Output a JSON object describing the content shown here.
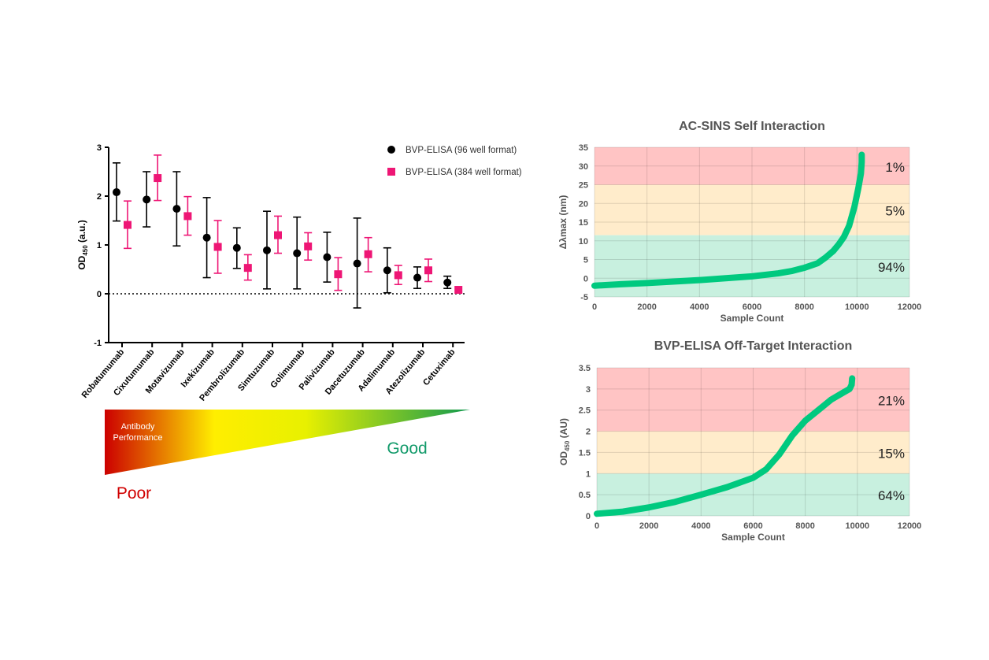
{
  "chart_data": [
    {
      "type": "scatter",
      "ylabel": "OD450 (a.u.)",
      "ylabel_main": "OD",
      "ylabel_sub": "450",
      "ylabel_unit": " (a.u.)",
      "ylim": [
        -1,
        3
      ],
      "yticks": [
        "-1",
        "0",
        "1",
        "2",
        "3"
      ],
      "reference_line": 0,
      "legend": "top-right",
      "categories": [
        "Robatumumab",
        "Cixutumumab",
        "Motavizumab",
        "Ixekizumab",
        "Pembrolizumab",
        "Simtuzumab",
        "Golimumab",
        "Palivizumab",
        "Dacetuzumab",
        "Adalimumab",
        "Atezolizumab",
        "Cetuximab"
      ],
      "series": [
        {
          "name": "BVP-ELISA (96 well format)",
          "color": "#000000",
          "marker": "circle",
          "values": [
            2.08,
            1.93,
            1.74,
            1.15,
            0.94,
            0.89,
            0.83,
            0.75,
            0.62,
            0.48,
            0.33,
            0.23
          ],
          "err_low": [
            1.49,
            1.37,
            0.98,
            0.33,
            0.52,
            0.1,
            0.1,
            0.24,
            -0.29,
            0.02,
            0.11,
            0.11
          ],
          "err_high": [
            2.68,
            2.5,
            2.5,
            1.97,
            1.35,
            1.69,
            1.57,
            1.26,
            1.55,
            0.94,
            0.55,
            0.36
          ]
        },
        {
          "name": "BVP-ELISA (384 well format)",
          "color": "#ee1675",
          "marker": "square",
          "values": [
            1.41,
            2.37,
            1.59,
            0.96,
            0.53,
            1.2,
            0.97,
            0.4,
            0.81,
            0.38,
            0.48,
            0.08
          ],
          "err_low": [
            0.93,
            1.91,
            1.2,
            0.42,
            0.28,
            0.83,
            0.69,
            0.07,
            0.45,
            0.19,
            0.25,
            0.08
          ],
          "err_high": [
            1.9,
            2.84,
            1.99,
            1.5,
            0.8,
            1.59,
            1.25,
            0.74,
            1.15,
            0.58,
            0.71,
            0.08
          ]
        }
      ]
    },
    {
      "type": "line",
      "title": "AC-SINS Self Interaction",
      "xlabel": "Sample Count",
      "ylabel": "Δλmax (nm)",
      "xlim": [
        0,
        12000
      ],
      "ylim": [
        -5,
        35
      ],
      "xticks": [
        "0",
        "2000",
        "4000",
        "6000",
        "8000",
        "10000",
        "12000"
      ],
      "yticks": [
        "-5",
        "0",
        "5",
        "10",
        "15",
        "20",
        "25",
        "30",
        "35"
      ],
      "grid": true,
      "bands": [
        {
          "from": 25,
          "to": 35,
          "color": "#ffc4c4",
          "label": "1%"
        },
        {
          "from": 11.5,
          "to": 25,
          "color": "#ffeccb",
          "label": "5%"
        },
        {
          "from": -5,
          "to": 11.5,
          "color": "#c8f0df",
          "label": "94%"
        }
      ],
      "x": [
        0,
        1000,
        2000,
        3000,
        4000,
        5000,
        6000,
        7000,
        7500,
        8000,
        8500,
        8800,
        9100,
        9300,
        9500,
        9700,
        9900,
        10050,
        10150,
        10180,
        10180
      ],
      "y": [
        -2,
        -1.6,
        -1.3,
        -0.9,
        -0.5,
        0,
        0.5,
        1.3,
        1.9,
        2.8,
        4,
        5.5,
        7.3,
        9,
        11,
        14,
        19,
        24,
        28,
        31,
        33
      ],
      "color": "#00c97f"
    },
    {
      "type": "line",
      "title": "BVP-ELISA Off-Target Interaction",
      "xlabel": "Sample Count",
      "ylabel": "OD450 (AU)",
      "ylabel_main": "OD",
      "ylabel_sub": "450",
      "ylabel_unit": " (AU)",
      "xlim": [
        0,
        12000
      ],
      "ylim": [
        0,
        3.5
      ],
      "xticks": [
        "0",
        "2000",
        "4000",
        "6000",
        "8000",
        "10000",
        "12000"
      ],
      "yticks": [
        "0",
        "0.5",
        "1",
        "1.5",
        "2",
        "2.5",
        "3",
        "3.5"
      ],
      "grid": true,
      "bands": [
        {
          "from": 2,
          "to": 3.5,
          "color": "#ffc4c4",
          "label": "21%"
        },
        {
          "from": 1,
          "to": 2,
          "color": "#ffeccb",
          "label": "15%"
        },
        {
          "from": 0,
          "to": 1,
          "color": "#c8f0df",
          "label": "64%"
        }
      ],
      "x": [
        0,
        1000,
        2000,
        3000,
        4000,
        5000,
        6000,
        6500,
        7000,
        7500,
        8000,
        8500,
        9000,
        9500,
        9700,
        9780,
        9800
      ],
      "y": [
        0.05,
        0.1,
        0.2,
        0.33,
        0.5,
        0.68,
        0.9,
        1.1,
        1.45,
        1.9,
        2.25,
        2.5,
        2.75,
        2.93,
        3.0,
        3.1,
        3.25
      ],
      "color": "#00c97f"
    }
  ],
  "performance_scale": {
    "label": "Antibody Performance",
    "label_line1": "Antibody",
    "label_line2": "Performance",
    "poor": "Poor",
    "good": "Good",
    "colors": [
      "#cc0000",
      "#ffee00",
      "#129a4f"
    ]
  }
}
